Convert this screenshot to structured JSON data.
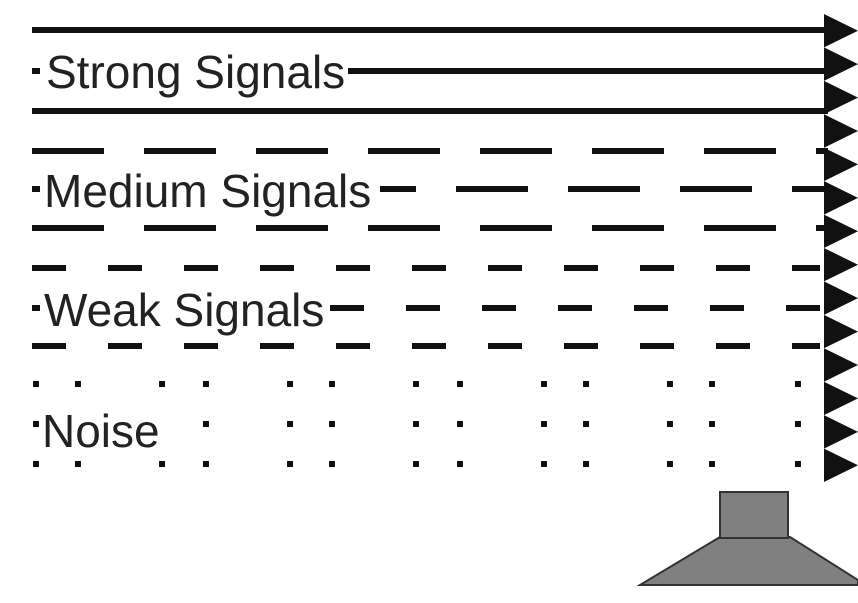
{
  "signals": [
    {
      "label": "Strong Signals",
      "style": "solid"
    },
    {
      "label": "Medium Signals",
      "style": "long-dash"
    },
    {
      "label": "Weak Signals",
      "style": "short-dash"
    },
    {
      "label": "Noise",
      "style": "dotted"
    }
  ],
  "colors": {
    "line": "#111111",
    "receiver_fill": "#808080",
    "receiver_stroke": "#333333"
  },
  "icons": {
    "arrowhead": "triangle-arrowhead-icon",
    "receiver": "receiver-icon"
  }
}
